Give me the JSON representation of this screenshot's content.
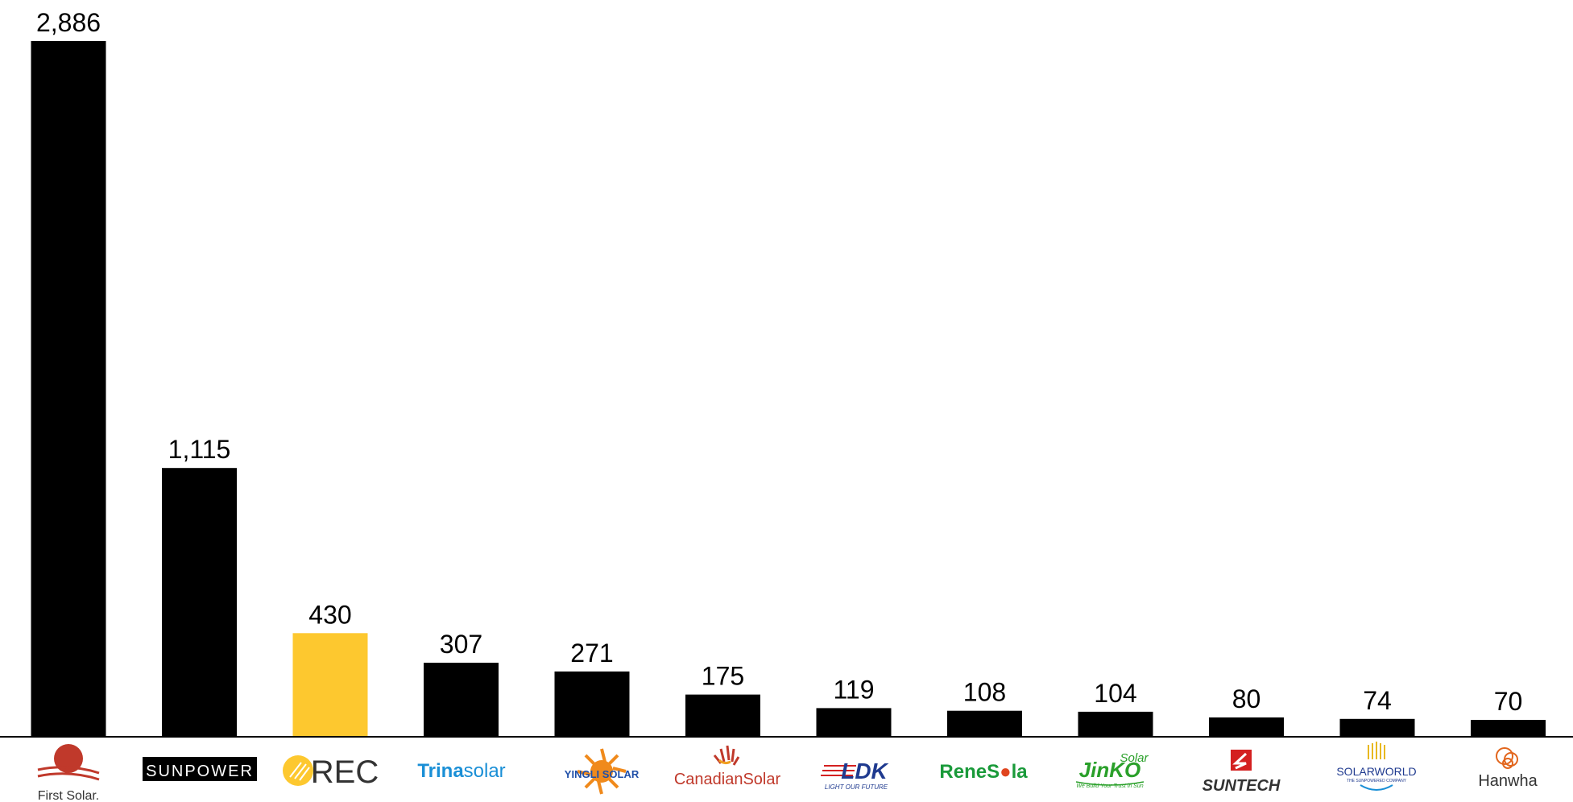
{
  "chart_data": {
    "type": "bar",
    "categories": [
      "First Solar",
      "SunPower",
      "REC",
      "Trina Solar",
      "Yingli Solar",
      "Canadian Solar",
      "LDK",
      "ReneSola",
      "JinKO Solar",
      "Suntech",
      "SolarWorld",
      "Hanwha"
    ],
    "values": [
      2886,
      1115,
      430,
      307,
      271,
      175,
      119,
      108,
      104,
      80,
      74,
      70
    ],
    "value_labels": [
      "2,886",
      "1,115",
      "430",
      "307",
      "271",
      "175",
      "119",
      "108",
      "104",
      "80",
      "74",
      "70"
    ],
    "colors": {
      "default_bar": "#000000",
      "highlight_bar": "#FDC82F",
      "highlight_category": "REC",
      "axis": "#000000"
    },
    "ylim": [
      0,
      2886
    ],
    "grid": false,
    "legend": "none",
    "title": "",
    "xlabel": "",
    "ylabel": ""
  },
  "logos": [
    {
      "name": "first-solar-logo",
      "text": "First Solar.",
      "color": "#c0392b"
    },
    {
      "name": "sunpower-logo",
      "text": "SUNPOWER",
      "color": "#000000"
    },
    {
      "name": "rec-logo",
      "text": "REC",
      "color": "#333333"
    },
    {
      "name": "trina-solar-logo",
      "text_a": "Trina",
      "text_b": "solar",
      "color": "#1a8fd6"
    },
    {
      "name": "yingli-solar-logo",
      "text": "YINGLI SOLAR",
      "color": "#1f4fa8"
    },
    {
      "name": "canadian-solar-logo",
      "text": "CanadianSolar",
      "color": "#c0392b"
    },
    {
      "name": "ldk-logo",
      "text": "LDK",
      "tagline": "LIGHT OUR FUTURE",
      "color": "#1f3a8f"
    },
    {
      "name": "renesola-logo",
      "text_a": "ReneS",
      "text_b": "la",
      "color": "#1a9a3a"
    },
    {
      "name": "jinko-solar-logo",
      "text": "JinKO",
      "super": "Solar",
      "tagline": "We Build Your Trust in Sun",
      "color": "#2aa02a"
    },
    {
      "name": "suntech-logo",
      "text": "SUNTECH",
      "color": "#d42020"
    },
    {
      "name": "solarworld-logo",
      "text": "SOLARWORLD",
      "tagline": "THE SUNPOWERED COMPANY",
      "color": "#1f3a8f"
    },
    {
      "name": "hanwha-logo",
      "text": "Hanwha",
      "color": "#e2661d"
    }
  ]
}
